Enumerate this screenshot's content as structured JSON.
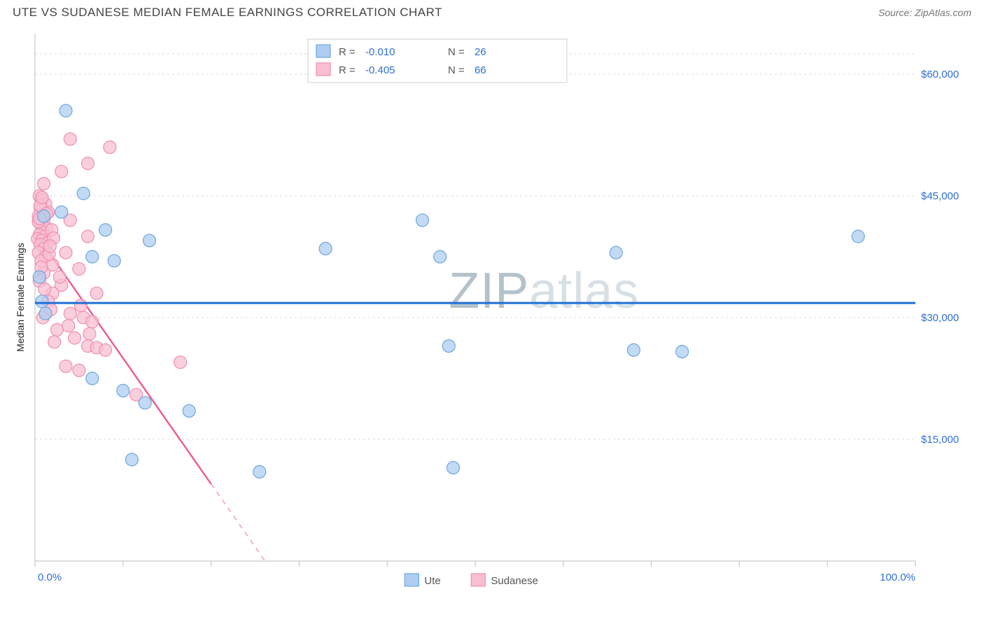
{
  "title": "UTE VS SUDANESE MEDIAN FEMALE EARNINGS CORRELATION CHART",
  "source_label": "Source: ZipAtlas.com",
  "watermark": {
    "left": "ZIP",
    "right": "atlas"
  },
  "chart": {
    "type": "scatter",
    "background_color": "#ffffff",
    "plot_border_color": "#bdbdbd",
    "grid_color": "#dcdcdc",
    "ylabel": "Median Female Earnings",
    "ylabel_fontsize": 14,
    "ylabel_color": "#222222",
    "x_axis": {
      "min": 0,
      "max": 100,
      "tick_positions": [
        0,
        10,
        20,
        30,
        40,
        50,
        60,
        70,
        80,
        90,
        100
      ],
      "label_left": "0.0%",
      "label_right": "100.0%",
      "label_color": "#2f6fd0",
      "label_fontsize": 15
    },
    "y_axis": {
      "min": 0,
      "max": 65000,
      "gridlines": [
        15000,
        30000,
        45000,
        60000,
        62500
      ],
      "tick_labels": [
        {
          "v": 15000,
          "t": "$15,000"
        },
        {
          "v": 30000,
          "t": "$30,000"
        },
        {
          "v": 45000,
          "t": "$45,000"
        },
        {
          "v": 60000,
          "t": "$60,000"
        }
      ],
      "label_color": "#2f6fd0",
      "label_fontsize": 15
    },
    "series": [
      {
        "name": "Ute",
        "color_fill": "#aecdf0",
        "color_stroke": "#6fa6df",
        "marker_radius": 9,
        "marker_opacity": 0.75,
        "trend": {
          "slope": -0.004,
          "intercept": 31800,
          "color": "#1f6fd6",
          "width": 3
        },
        "stats": {
          "R": "-0.010",
          "N": "26"
        },
        "points": [
          [
            3.5,
            55500
          ],
          [
            5.5,
            45300
          ],
          [
            3,
            43000
          ],
          [
            1,
            42500
          ],
          [
            8,
            40800
          ],
          [
            6.5,
            37500
          ],
          [
            13,
            39500
          ],
          [
            0.5,
            35000
          ],
          [
            0.8,
            32000
          ],
          [
            1.2,
            30500
          ],
          [
            33,
            38500
          ],
          [
            44,
            42000
          ],
          [
            46,
            37500
          ],
          [
            47,
            26500
          ],
          [
            47.5,
            11500
          ],
          [
            66,
            38000
          ],
          [
            68,
            26000
          ],
          [
            73.5,
            25800
          ],
          [
            93.5,
            40000
          ],
          [
            6.5,
            22500
          ],
          [
            10,
            21000
          ],
          [
            12.5,
            19500
          ],
          [
            17.5,
            18500
          ],
          [
            11,
            12500
          ],
          [
            25.5,
            11000
          ],
          [
            9,
            37000
          ]
        ]
      },
      {
        "name": "Sudanese",
        "color_fill": "#f7bfd1",
        "color_stroke": "#ef8fb2",
        "marker_radius": 9,
        "marker_opacity": 0.75,
        "trend": {
          "slope": -1550,
          "intercept": 40500,
          "color": "#ec5f8f",
          "width": 2.5,
          "dash_after_x": 20
        },
        "stats": {
          "R": "-0.405",
          "N": "66"
        },
        "points": [
          [
            4,
            52000
          ],
          [
            8.5,
            51000
          ],
          [
            6,
            49000
          ],
          [
            3,
            48000
          ],
          [
            1,
            46500
          ],
          [
            0.5,
            45000
          ],
          [
            0.8,
            44500
          ],
          [
            1.2,
            44000
          ],
          [
            0.6,
            43500
          ],
          [
            1.5,
            43000
          ],
          [
            0.4,
            42500
          ],
          [
            1.0,
            42000
          ],
          [
            0.7,
            41500
          ],
          [
            1.3,
            41000
          ],
          [
            0.9,
            40500
          ],
          [
            0.5,
            40200
          ],
          [
            1.1,
            40000
          ],
          [
            0.3,
            39700
          ],
          [
            0.8,
            39500
          ],
          [
            1.4,
            39200
          ],
          [
            0.6,
            39000
          ],
          [
            1.0,
            38500
          ],
          [
            0.4,
            38000
          ],
          [
            1.2,
            37500
          ],
          [
            0.7,
            37000
          ],
          [
            6,
            40000
          ],
          [
            4,
            42000
          ],
          [
            3.5,
            38000
          ],
          [
            5,
            36000
          ],
          [
            3,
            34000
          ],
          [
            2,
            33000
          ],
          [
            1.5,
            32000
          ],
          [
            4,
            30500
          ],
          [
            5.5,
            30000
          ],
          [
            6.5,
            29500
          ],
          [
            2.5,
            28500
          ],
          [
            6,
            26500
          ],
          [
            7,
            26300
          ],
          [
            8,
            26000
          ],
          [
            3.5,
            24000
          ],
          [
            5,
            23500
          ],
          [
            16.5,
            24500
          ],
          [
            11.5,
            20500
          ],
          [
            7,
            33000
          ],
          [
            2,
            36500
          ],
          [
            1,
            35500
          ],
          [
            0.5,
            34500
          ],
          [
            1.8,
            31000
          ],
          [
            0.9,
            30000
          ],
          [
            4.5,
            27500
          ],
          [
            2.2,
            27000
          ],
          [
            5.2,
            31500
          ],
          [
            3.8,
            29000
          ],
          [
            6.2,
            28000
          ],
          [
            1.6,
            37800
          ],
          [
            0.7,
            36200
          ],
          [
            2.8,
            35000
          ],
          [
            1.1,
            33500
          ],
          [
            0.4,
            41800
          ],
          [
            1.9,
            40800
          ],
          [
            0.6,
            43800
          ],
          [
            1.3,
            42800
          ],
          [
            0.8,
            44800
          ],
          [
            2.1,
            39800
          ],
          [
            1.7,
            38800
          ],
          [
            0.5,
            42200
          ]
        ]
      }
    ],
    "legend_top": {
      "border_color": "#cfcfcf",
      "bg": "#ffffff",
      "label_R": "R =",
      "label_N": "N =",
      "text_color": "#555555",
      "value_color": "#2f6fd0",
      "fontsize": 15
    },
    "legend_bottom": {
      "items": [
        "Ute",
        "Sudanese"
      ],
      "text_color": "#555555",
      "fontsize": 15
    }
  }
}
